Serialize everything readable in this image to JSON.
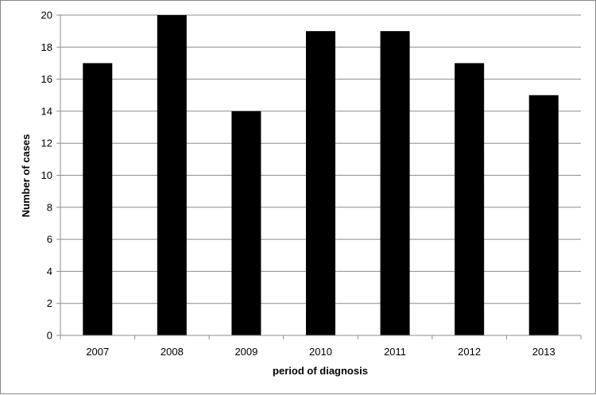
{
  "chart_data": {
    "type": "bar",
    "title": "",
    "xlabel": "period of diagnosis",
    "ylabel": "Number of cases",
    "categories": [
      "2007",
      "2008",
      "2009",
      "2010",
      "2011",
      "2012",
      "2013"
    ],
    "values": [
      17,
      20,
      14,
      19,
      19,
      17,
      15
    ],
    "ylim": [
      0,
      20
    ],
    "yticks": [
      "0",
      "2",
      "4",
      "6",
      "8",
      "10",
      "12",
      "14",
      "16",
      "18",
      "20"
    ],
    "grid": "horizontal",
    "legend": "none",
    "colors": {
      "bar": "#000000",
      "grid": "#8c8c8c",
      "axis": "#8c8c8c"
    }
  }
}
